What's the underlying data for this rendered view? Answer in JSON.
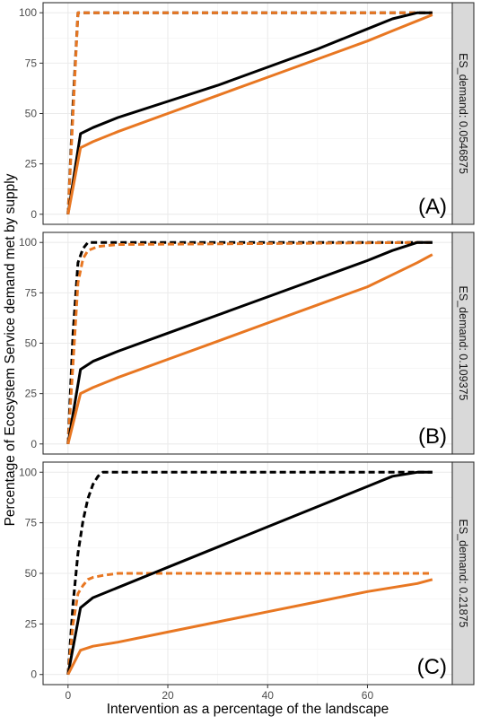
{
  "figure": {
    "ylabel": "Percentage of Ecosystem Service demand met by supply",
    "xlabel": "Intervention as a percentage of the landscape"
  },
  "chart_data": [
    {
      "type": "line",
      "panel_label": "(A)",
      "facet_strip": "ES_demand: 0.0546875",
      "xlim": [
        -5,
        77
      ],
      "ylim": [
        -5,
        105
      ],
      "x_ticks": [
        0,
        20,
        40,
        60
      ],
      "y_ticks": [
        0,
        25,
        50,
        75,
        100
      ],
      "grid": true,
      "series": [
        {
          "color": "#000000",
          "dash": true,
          "x": [
            0,
            1,
            2,
            3,
            73
          ],
          "y": [
            0,
            55,
            100,
            100,
            100
          ]
        },
        {
          "color": "#e87722",
          "dash": true,
          "x": [
            0,
            1,
            2,
            3,
            73
          ],
          "y": [
            0,
            50,
            100,
            100,
            100
          ]
        },
        {
          "color": "#000000",
          "dash": false,
          "x": [
            0,
            2.5,
            5,
            10,
            20,
            30,
            40,
            50,
            60,
            65,
            70,
            73
          ],
          "y": [
            0,
            40,
            43,
            48,
            56,
            64,
            73,
            82,
            92,
            97,
            100,
            100
          ]
        },
        {
          "color": "#e87722",
          "dash": false,
          "x": [
            0,
            2.5,
            5,
            10,
            20,
            30,
            40,
            50,
            60,
            65,
            70,
            73
          ],
          "y": [
            0,
            33,
            36,
            41,
            50,
            59,
            68,
            77,
            86,
            91,
            96,
            99
          ]
        }
      ]
    },
    {
      "type": "line",
      "panel_label": "(B)",
      "facet_strip": "ES_demand: 0.109375",
      "xlim": [
        -5,
        77
      ],
      "ylim": [
        -5,
        105
      ],
      "x_ticks": [
        0,
        20,
        40,
        60
      ],
      "y_ticks": [
        0,
        25,
        50,
        75,
        100
      ],
      "grid": true,
      "series": [
        {
          "color": "#000000",
          "dash": true,
          "x": [
            0,
            1,
            2,
            3,
            4,
            6,
            73
          ],
          "y": [
            0,
            55,
            90,
            97,
            100,
            100,
            100
          ]
        },
        {
          "color": "#e87722",
          "dash": true,
          "x": [
            0,
            1,
            2,
            3,
            4,
            6,
            10,
            73
          ],
          "y": [
            0,
            40,
            80,
            92,
            96,
            98,
            99,
            100
          ]
        },
        {
          "color": "#000000",
          "dash": false,
          "x": [
            0,
            2.5,
            5,
            10,
            20,
            30,
            40,
            50,
            60,
            65,
            70,
            73
          ],
          "y": [
            0,
            37,
            41,
            46,
            55,
            64,
            73,
            82,
            91,
            96,
            100,
            100
          ]
        },
        {
          "color": "#e87722",
          "dash": false,
          "x": [
            0,
            2.5,
            5,
            10,
            20,
            30,
            40,
            50,
            60,
            65,
            70,
            73
          ],
          "y": [
            0,
            25,
            28,
            33,
            42,
            51,
            60,
            69,
            78,
            84,
            90,
            94
          ]
        }
      ]
    },
    {
      "type": "line",
      "panel_label": "(C)",
      "facet_strip": "ES_demand: 0.21875",
      "xlim": [
        -5,
        77
      ],
      "ylim": [
        -5,
        105
      ],
      "x_ticks": [
        0,
        20,
        40,
        60
      ],
      "y_ticks": [
        0,
        25,
        50,
        75,
        100
      ],
      "grid": true,
      "series": [
        {
          "color": "#000000",
          "dash": true,
          "x": [
            0,
            1,
            2,
            3,
            4,
            5,
            6,
            7,
            8,
            73
          ],
          "y": [
            0,
            35,
            60,
            76,
            87,
            94,
            98,
            100,
            100,
            100
          ]
        },
        {
          "color": "#e87722",
          "dash": true,
          "x": [
            0,
            1,
            2,
            3,
            4,
            5,
            7,
            10,
            73
          ],
          "y": [
            0,
            25,
            40,
            44,
            47,
            48,
            49,
            50,
            50
          ]
        },
        {
          "color": "#000000",
          "dash": false,
          "x": [
            0,
            2.5,
            5,
            10,
            20,
            30,
            40,
            50,
            60,
            65,
            70,
            73
          ],
          "y": [
            0,
            33,
            38,
            43,
            53,
            63,
            73,
            83,
            93,
            98,
            100,
            100
          ]
        },
        {
          "color": "#e87722",
          "dash": false,
          "x": [
            0,
            2.5,
            5,
            10,
            20,
            30,
            40,
            50,
            60,
            65,
            70,
            73
          ],
          "y": [
            0,
            12,
            14,
            16,
            21,
            26,
            31,
            36,
            41,
            43,
            45,
            47
          ]
        }
      ]
    }
  ]
}
